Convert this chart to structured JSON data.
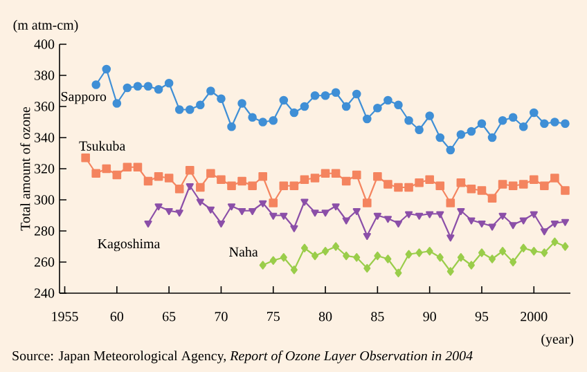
{
  "chart_data": {
    "type": "line",
    "ylabel": "Total amount of ozone",
    "xlabel": "(year)",
    "annotations": [
      "(m atm-cm)",
      "Source: Japan Meteorological Agency, *Report of Ozone Layer Observation in 2004*"
    ],
    "xlim": [
      1954.5,
      2003.5
    ],
    "xticks": [
      1955,
      {
        "value": 1960,
        "label": "60"
      },
      {
        "value": 1965,
        "label": "65"
      },
      {
        "value": 1970,
        "label": "70"
      },
      {
        "value": 1975,
        "label": "75"
      },
      {
        "value": 1980,
        "label": "80"
      },
      {
        "value": 1985,
        "label": "85"
      },
      {
        "value": 1990,
        "label": "90"
      },
      {
        "value": 1995,
        "label": "95"
      },
      2000
    ],
    "ylim": [
      240,
      400
    ],
    "yticks": [
      240,
      260,
      280,
      300,
      320,
      340,
      360,
      380,
      400
    ],
    "line_style": "solid",
    "series": [
      {
        "name": "Sapporo",
        "color": "#3f8fd6",
        "marker": "circle",
        "x": [
          1958,
          1959,
          1960,
          1961,
          1962,
          1963,
          1964,
          1965,
          1966,
          1967,
          1968,
          1969,
          1970,
          1971,
          1972,
          1973,
          1974,
          1975,
          1976,
          1977,
          1978,
          1979,
          1980,
          1981,
          1982,
          1983,
          1984,
          1985,
          1986,
          1987,
          1988,
          1989,
          1990,
          1991,
          1992,
          1993,
          1994,
          1995,
          1996,
          1997,
          1998,
          1999,
          2000,
          2001,
          2002,
          2003
        ],
        "values": [
          374,
          384,
          362,
          372,
          373,
          373,
          371,
          375,
          358,
          358,
          361,
          370,
          365,
          347,
          362,
          353,
          350,
          351,
          364,
          356,
          360,
          367,
          367,
          369,
          360,
          368,
          352,
          359,
          364,
          361,
          351,
          345,
          354,
          340,
          332,
          342,
          344,
          349,
          340,
          351,
          353,
          347,
          356,
          349,
          350,
          349
        ]
      },
      {
        "name": "Tsukuba",
        "color": "#f4845f",
        "marker": "square",
        "x": [
          1957,
          1958,
          1959,
          1960,
          1961,
          1962,
          1963,
          1964,
          1965,
          1966,
          1967,
          1968,
          1969,
          1970,
          1971,
          1972,
          1973,
          1974,
          1975,
          1976,
          1977,
          1978,
          1979,
          1980,
          1981,
          1982,
          1983,
          1984,
          1985,
          1986,
          1987,
          1988,
          1989,
          1990,
          1991,
          1992,
          1993,
          1994,
          1995,
          1996,
          1997,
          1998,
          1999,
          2000,
          2001,
          2002,
          2003
        ],
        "values": [
          327,
          317,
          320,
          316,
          321,
          321,
          312,
          315,
          314,
          307,
          319,
          308,
          317,
          313,
          309,
          312,
          309,
          315,
          298,
          309,
          309,
          313,
          314,
          317,
          317,
          312,
          316,
          298,
          315,
          310,
          308,
          308,
          311,
          313,
          309,
          298,
          311,
          307,
          306,
          301,
          310,
          309,
          310,
          313,
          309,
          314,
          306
        ]
      },
      {
        "name": "Kagoshima",
        "color": "#8b4fa8",
        "marker": "triangle",
        "x": [
          1963,
          1964,
          1965,
          1966,
          1967,
          1968,
          1969,
          1970,
          1971,
          1972,
          1973,
          1974,
          1975,
          1976,
          1977,
          1978,
          1979,
          1980,
          1981,
          1982,
          1983,
          1984,
          1985,
          1986,
          1987,
          1988,
          1989,
          1990,
          1991,
          1992,
          1993,
          1994,
          1995,
          1996,
          1997,
          1998,
          1999,
          2000,
          2001,
          2002,
          2003
        ],
        "values": [
          285,
          296,
          293,
          292,
          309,
          299,
          294,
          285,
          296,
          293,
          293,
          298,
          290,
          290,
          282,
          299,
          292,
          292,
          296,
          287,
          293,
          277,
          290,
          288,
          285,
          291,
          290,
          291,
          291,
          276,
          293,
          287,
          285,
          283,
          290,
          284,
          287,
          291,
          280,
          285,
          286
        ]
      },
      {
        "name": "Naha",
        "color": "#9acd4a",
        "marker": "diamond",
        "x": [
          1974,
          1975,
          1976,
          1977,
          1978,
          1979,
          1980,
          1981,
          1982,
          1983,
          1984,
          1985,
          1986,
          1987,
          1988,
          1989,
          1990,
          1991,
          1992,
          1993,
          1994,
          1995,
          1996,
          1997,
          1998,
          1999,
          2000,
          2001,
          2002,
          2003
        ],
        "values": [
          258,
          261,
          263,
          255,
          269,
          264,
          267,
          270,
          264,
          263,
          256,
          264,
          262,
          253,
          265,
          266,
          267,
          263,
          254,
          263,
          258,
          266,
          262,
          267,
          260,
          269,
          267,
          266,
          273,
          270
        ]
      }
    ]
  }
}
